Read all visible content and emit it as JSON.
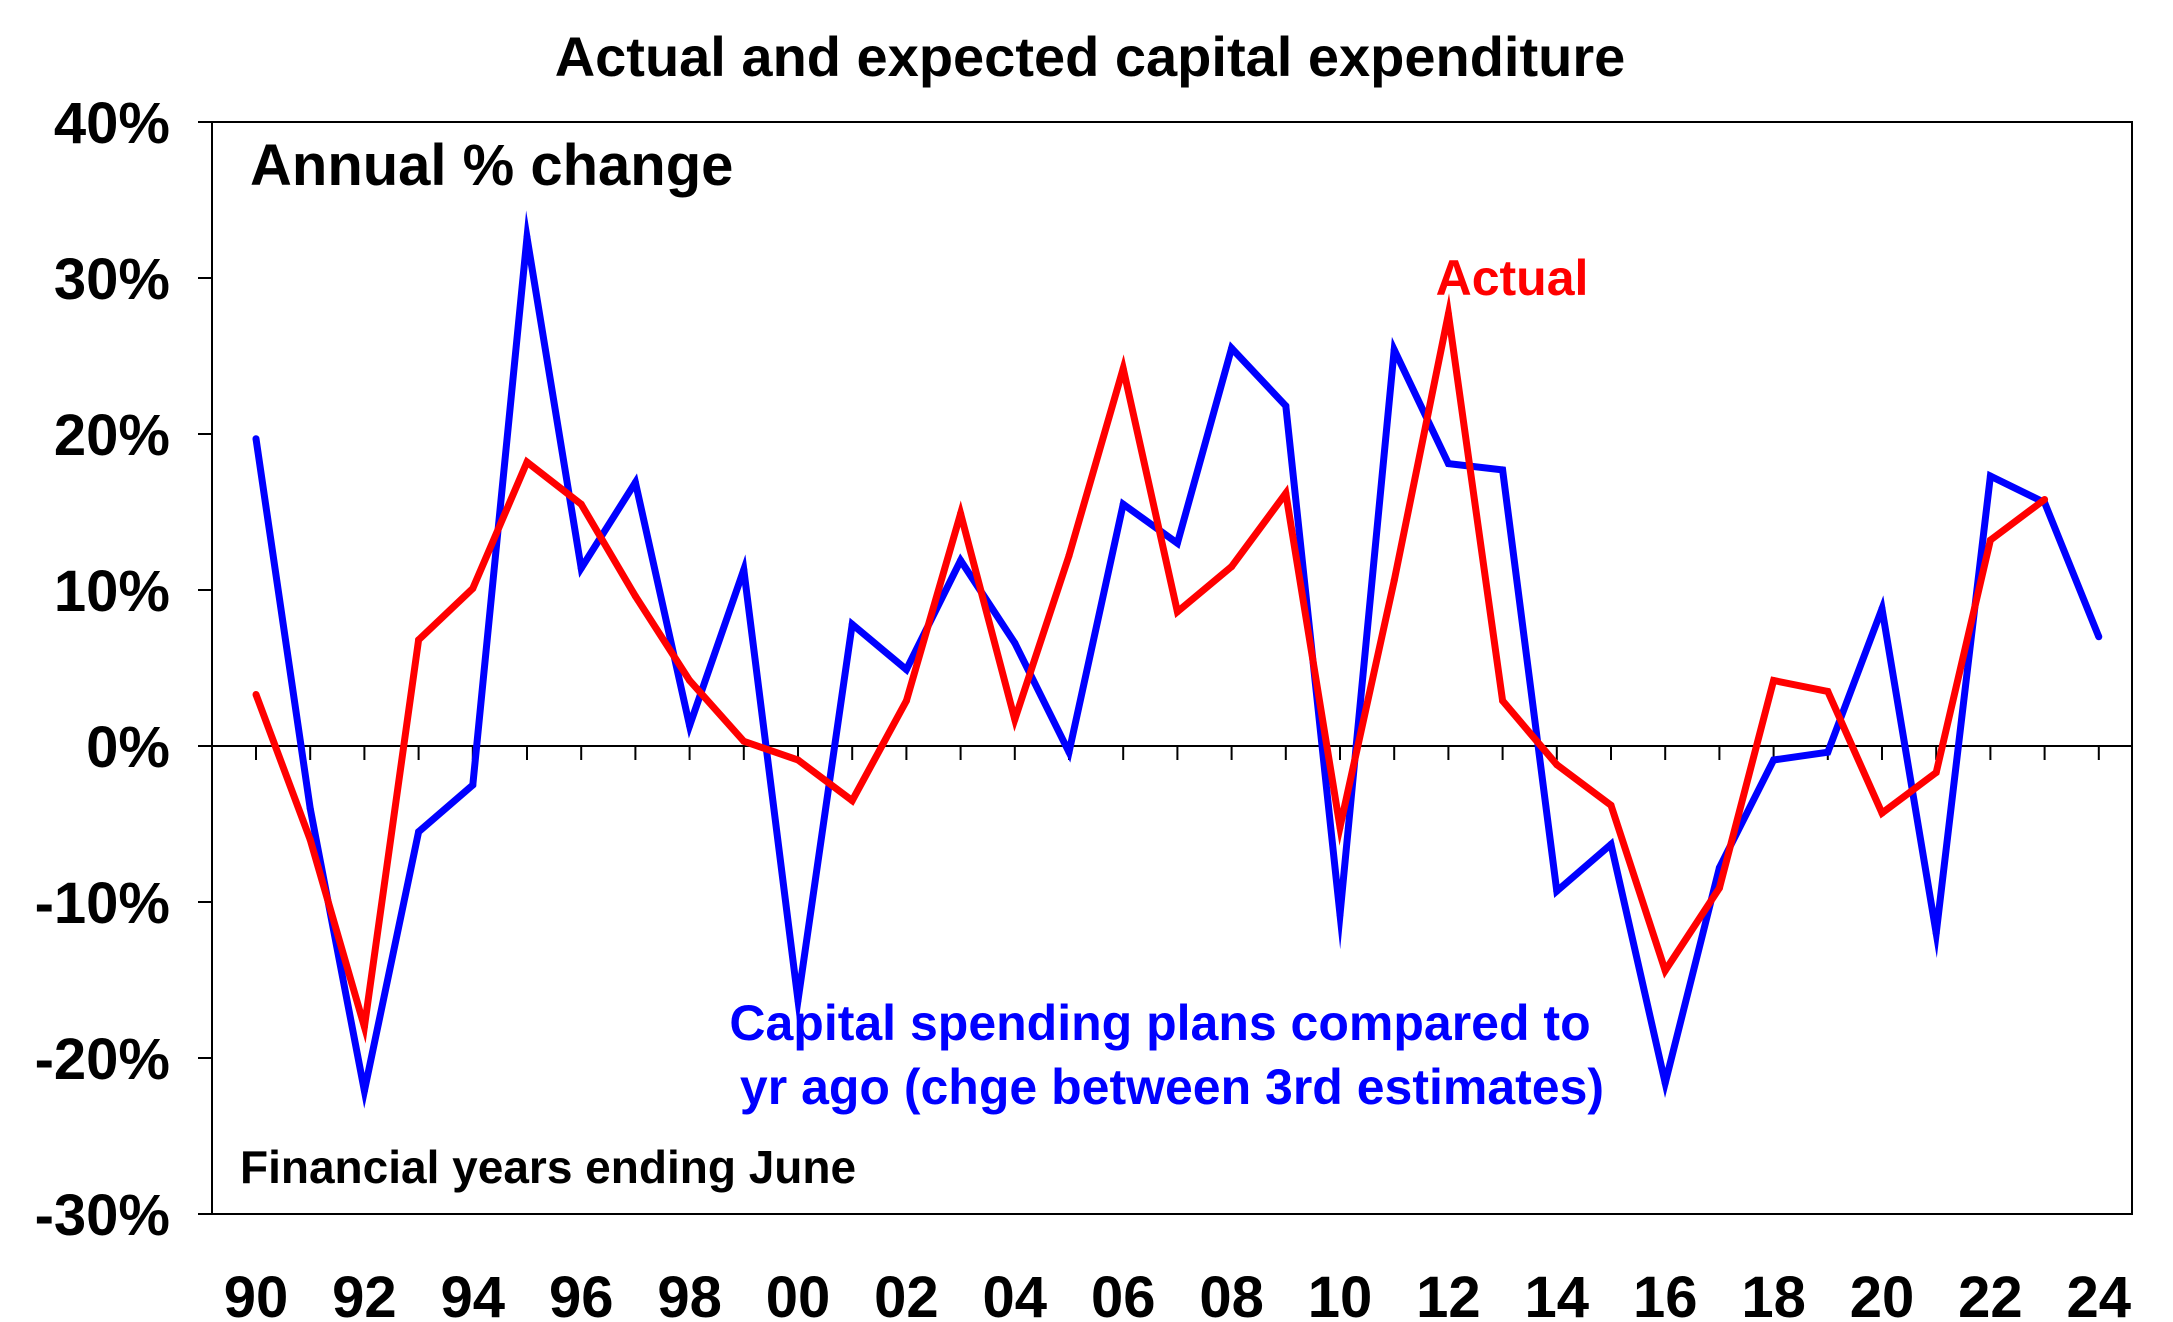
{
  "chart_data": {
    "type": "line",
    "title": "Actual and expected capital expenditure",
    "xlabel": "",
    "ylabel": "",
    "ylim": [
      -30,
      40
    ],
    "yticks": [
      40,
      30,
      20,
      10,
      0,
      -10,
      -20,
      -30
    ],
    "ytick_labels": [
      "40%",
      "30%",
      "20%",
      "10%",
      "0%",
      "-10%",
      "-20%",
      "-30%"
    ],
    "xlim": [
      1990,
      2024
    ],
    "xticks": [
      1990,
      1992,
      1994,
      1996,
      1998,
      2000,
      2002,
      2004,
      2006,
      2008,
      2010,
      2012,
      2014,
      2016,
      2018,
      2020,
      2022,
      2024
    ],
    "xtick_labels": [
      "90",
      "92",
      "94",
      "96",
      "98",
      "00",
      "02",
      "04",
      "06",
      "08",
      "10",
      "12",
      "14",
      "16",
      "18",
      "20",
      "22",
      "24"
    ],
    "grid": false,
    "annotations": {
      "unit_label": "Annual % change",
      "xaxis_note": "Financial years ending June",
      "actual_label": "Actual",
      "plans_label_line1": "Capital spending plans compared to",
      "plans_label_line2": "yr ago (chge between 3rd estimates)"
    },
    "series": [
      {
        "key": "plans",
        "color": "#0000ff",
        "x": [
          1990,
          1991,
          1992,
          1993,
          1994,
          1995,
          1996,
          1997,
          1998,
          1999,
          2000,
          2001,
          2002,
          2003,
          2004,
          2005,
          2006,
          2007,
          2008,
          2009,
          2010,
          2011,
          2012,
          2013,
          2014,
          2015,
          2016,
          2017,
          2018,
          2019,
          2020,
          2021,
          2022,
          2023,
          2024
        ],
        "values": [
          19.7,
          -4.0,
          -22.1,
          -5.5,
          -2.5,
          32.6,
          11.4,
          16.9,
          1.3,
          11.3,
          -16.3,
          7.8,
          4.9,
          11.9,
          6.6,
          -0.4,
          15.5,
          13.0,
          25.5,
          21.8,
          -10.8,
          25.4,
          18.1,
          17.7,
          -9.3,
          -6.3,
          -21.6,
          -7.8,
          -0.9,
          -0.4,
          8.8,
          -12.0,
          17.3,
          15.6,
          7.0
        ]
      },
      {
        "key": "actual",
        "color": "#ff0000",
        "x": [
          1990,
          1991,
          1992,
          1993,
          1994,
          1995,
          1996,
          1997,
          1998,
          1999,
          2000,
          2001,
          2002,
          2003,
          2004,
          2005,
          2006,
          2007,
          2008,
          2009,
          2010,
          2011,
          2012,
          2013,
          2014,
          2015,
          2016,
          2017,
          2018,
          2019,
          2020,
          2021,
          2022,
          2023
        ],
        "values": [
          3.3,
          -6.0,
          -18.0,
          6.8,
          10.1,
          18.2,
          15.5,
          9.6,
          4.2,
          0.3,
          -0.9,
          -3.5,
          2.9,
          14.9,
          1.7,
          12.2,
          24.2,
          8.6,
          11.5,
          16.2,
          -5.2,
          10.6,
          27.7,
          2.9,
          -1.2,
          -3.8,
          -14.4,
          -9.1,
          4.2,
          3.5,
          -4.3,
          -1.7,
          13.2,
          15.8
        ]
      }
    ]
  }
}
